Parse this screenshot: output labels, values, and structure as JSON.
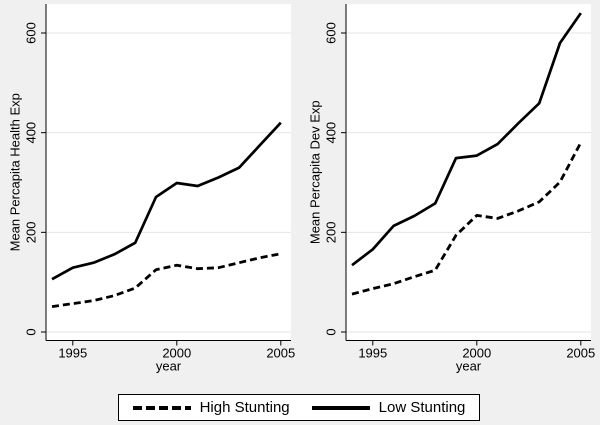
{
  "figure": {
    "background_color": "#f0f0f0",
    "plot_background_color": "#ffffff",
    "grid_color": "#e4e4e4",
    "line_color": "#000000",
    "text_color": "#000000"
  },
  "legend": {
    "position": "bottom-center",
    "items": [
      {
        "label": "High Stunting",
        "style": "dashed"
      },
      {
        "label": "Low Stunting",
        "style": "solid"
      }
    ]
  },
  "chart_data": [
    {
      "type": "line",
      "title": "",
      "ylabel": "Mean Percapita Health Exp",
      "xlabel": "year",
      "x": [
        1994,
        1995,
        1996,
        1997,
        1998,
        1999,
        2000,
        2001,
        2002,
        2003,
        2004,
        2005
      ],
      "xticks": [
        1995,
        2000,
        2005
      ],
      "yticks": [
        0,
        200,
        400,
        600
      ],
      "xlim": [
        1994,
        2005
      ],
      "ylim": [
        0,
        660
      ],
      "grid": true,
      "series": [
        {
          "name": "High Stunting",
          "style": "dashed",
          "values": [
            51,
            57,
            63,
            73,
            88,
            125,
            134,
            127,
            129,
            139,
            149,
            157
          ]
        },
        {
          "name": "Low Stunting",
          "style": "solid",
          "values": [
            106,
            129,
            139,
            156,
            179,
            271,
            299,
            293,
            310,
            330,
            375,
            420
          ]
        }
      ]
    },
    {
      "type": "line",
      "title": "",
      "ylabel": "Mean Percapita Dev Exp",
      "xlabel": "year",
      "x": [
        1994,
        1995,
        1996,
        1997,
        1998,
        1999,
        2000,
        2001,
        2002,
        2003,
        2004,
        2005
      ],
      "xticks": [
        1995,
        2000,
        2005
      ],
      "yticks": [
        0,
        200,
        400,
        600
      ],
      "xlim": [
        1994,
        2005
      ],
      "ylim": [
        0,
        660
      ],
      "grid": true,
      "series": [
        {
          "name": "High Stunting",
          "style": "dashed",
          "values": [
            76,
            87,
            97,
            111,
            124,
            194,
            234,
            228,
            243,
            261,
            301,
            380
          ]
        },
        {
          "name": "Low Stunting",
          "style": "solid",
          "values": [
            134,
            166,
            213,
            233,
            258,
            349,
            354,
            377,
            419,
            459,
            580,
            640
          ]
        }
      ]
    }
  ]
}
